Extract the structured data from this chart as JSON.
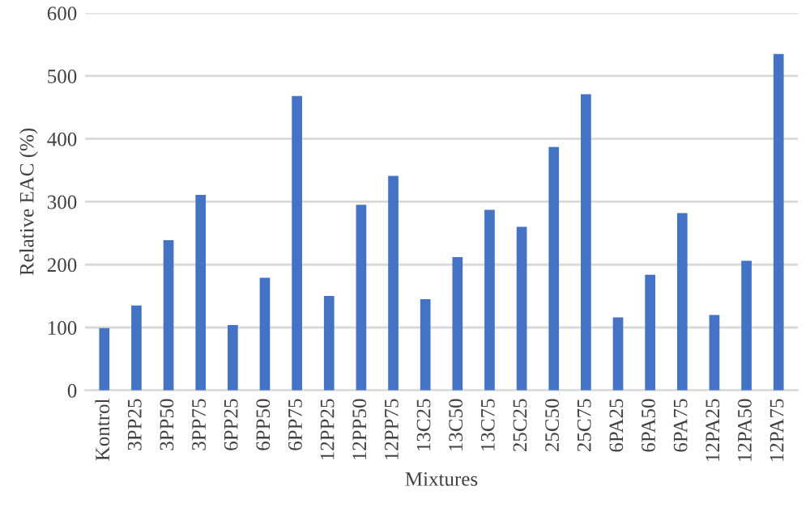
{
  "chart_data": {
    "type": "bar",
    "xlabel": "Mixtures",
    "ylabel": "Relative EAC (%)",
    "categories": [
      "Kontrol",
      "3PP25",
      "3PP50",
      "3PP75",
      "6PP25",
      "6PP50",
      "6PP75",
      "12PP25",
      "12PP50",
      "12PP75",
      "13C25",
      "13C50",
      "13C75",
      "25C25",
      "25C50",
      "25C75",
      "6PA25",
      "6PA50",
      "6PA75",
      "12PA25",
      "12PA50",
      "12PA75"
    ],
    "values": [
      99,
      135,
      239,
      311,
      104,
      179,
      468,
      150,
      295,
      341,
      145,
      212,
      287,
      260,
      387,
      471,
      116,
      184,
      282,
      120,
      206,
      535
    ],
    "color": "#4472c4",
    "ylim": [
      0,
      600
    ],
    "yticks": [
      0,
      100,
      200,
      300,
      400,
      500,
      600
    ],
    "grid": "y",
    "legend": false
  }
}
